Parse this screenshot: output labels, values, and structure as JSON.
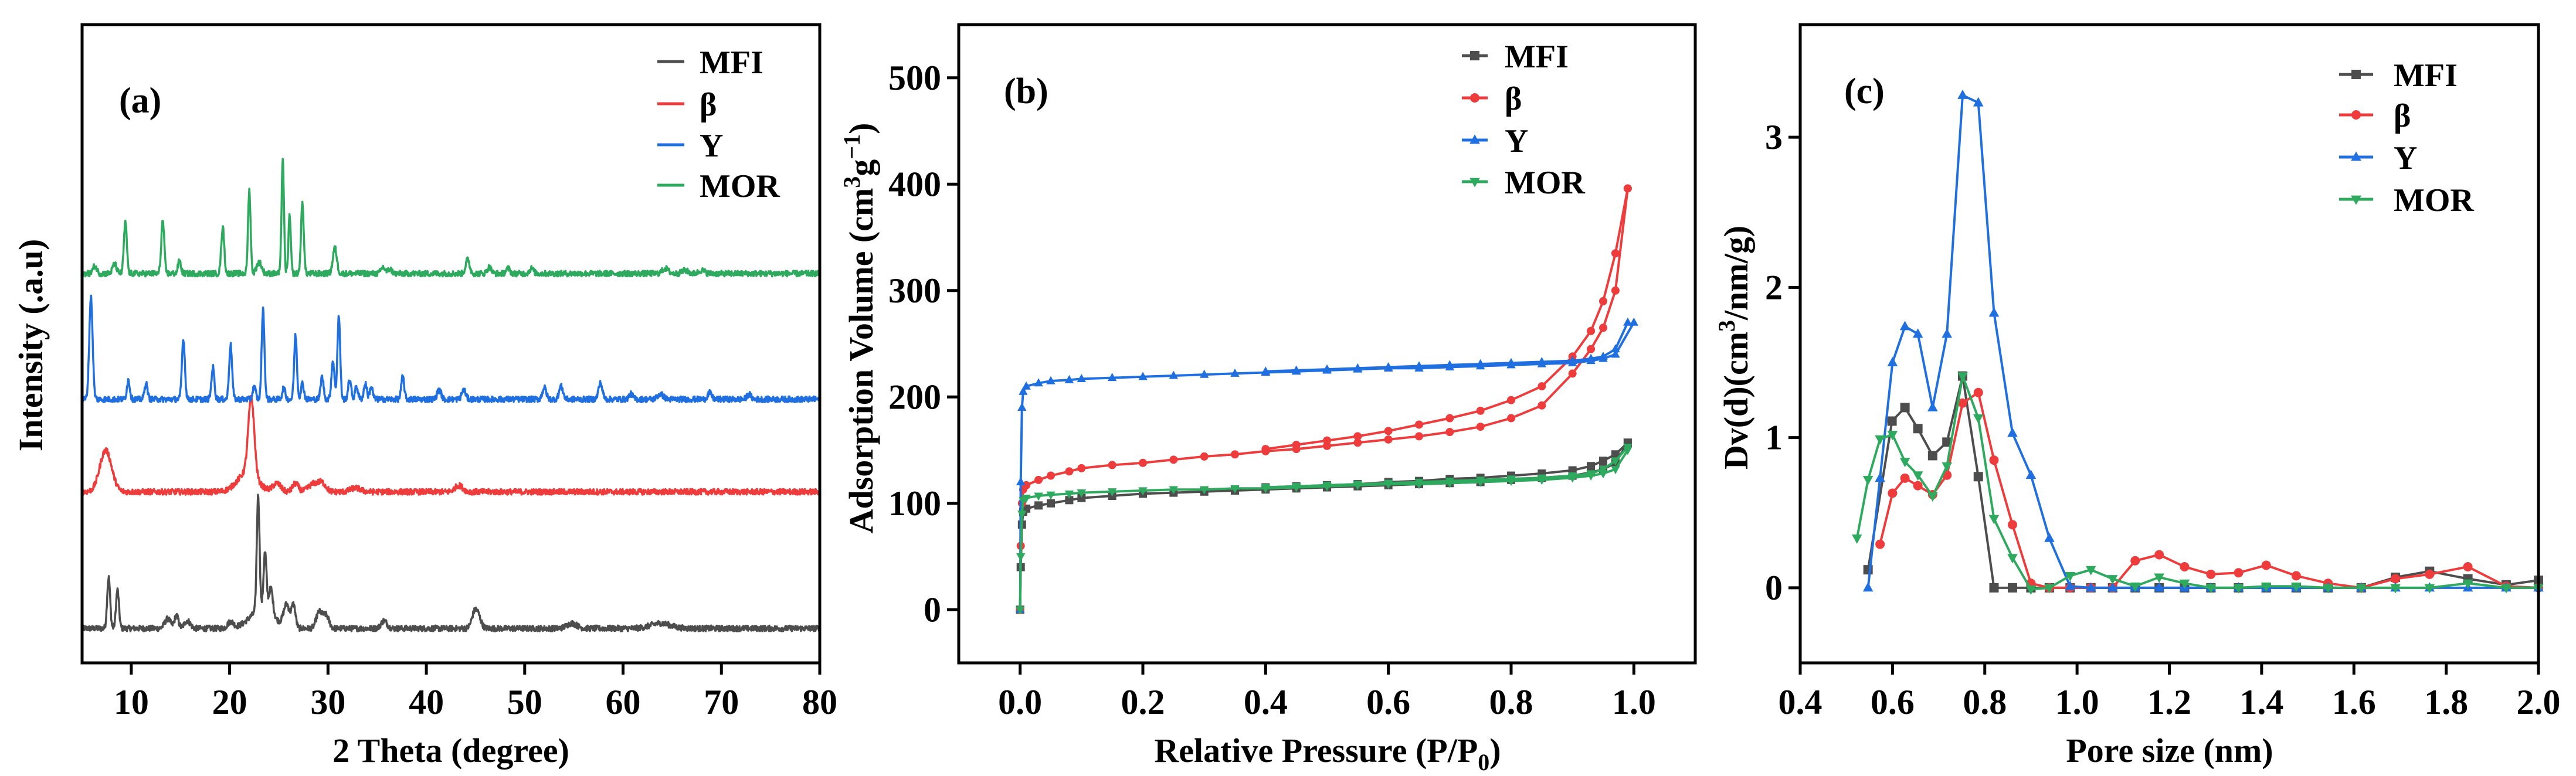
{
  "colors": {
    "MFI": "#4d4d4d",
    "beta": "#ee3b3b",
    "Y": "#1f6fe0",
    "MOR": "#2eaa5e"
  },
  "chart_data": [
    {
      "type": "line",
      "panel_label": "(a)",
      "title": "",
      "xlabel": "2 Theta (degree)",
      "ylabel": "Intensity (.a.u)",
      "xlim": [
        5,
        80
      ],
      "ylim": [
        0,
        100
      ],
      "xticks": [
        "10",
        "20",
        "30",
        "40",
        "50",
        "60",
        "70",
        "80"
      ],
      "xtick_values": [
        10,
        20,
        30,
        40,
        50,
        60,
        70,
        80
      ],
      "legend": {
        "placement": "top-right",
        "entries": [
          "MFI",
          "β",
          "Y",
          "MOR"
        ]
      },
      "series": [
        {
          "name": "MFI",
          "color_key": "MFI",
          "baseline": 5.4,
          "peaks": [
            [
              7.7,
              8,
              0.15
            ],
            [
              8.6,
              6,
              0.15
            ],
            [
              13.7,
              1.5,
              0.3
            ],
            [
              14.6,
              2,
              0.2
            ],
            [
              15.7,
              1.2,
              0.3
            ],
            [
              20.1,
              1,
              0.3
            ],
            [
              22.9,
              18,
              0.14
            ],
            [
              23.6,
              9,
              0.15
            ],
            [
              24.2,
              4,
              0.2
            ],
            [
              23.3,
              3,
              1.2
            ],
            [
              25.8,
              3.5,
              0.3
            ],
            [
              26.5,
              3.5,
              0.2
            ],
            [
              29.1,
              2.5,
              0.3
            ],
            [
              29.8,
              2,
              0.3
            ],
            [
              35.7,
              1.2,
              0.3
            ],
            [
              44.9,
              2.2,
              0.3
            ],
            [
              45.3,
              1.5,
              0.3
            ],
            [
              54.8,
              0.8,
              0.5
            ],
            [
              63.8,
              0.8,
              1
            ]
          ]
        },
        {
          "name": "β",
          "color_key": "beta",
          "baseline": 26.8,
          "peaks": [
            [
              7.4,
              6.5,
              0.6
            ],
            [
              22.2,
              12,
              0.3
            ],
            [
              21.8,
              3,
              1
            ],
            [
              24.8,
              1.3,
              0.4
            ],
            [
              26.7,
              1.3,
              0.3
            ],
            [
              28.5,
              1.2,
              0.5
            ],
            [
              29.4,
              1.3,
              0.4
            ],
            [
              43.3,
              1,
              0.4
            ],
            [
              32.8,
              0.6,
              0.5
            ]
          ]
        },
        {
          "name": "Y",
          "color_key": "Y",
          "baseline": 41.3,
          "peaks": [
            [
              5.9,
              16,
              0.17
            ],
            [
              9.7,
              3,
              0.15
            ],
            [
              11.5,
              2.5,
              0.15
            ],
            [
              15.3,
              9.5,
              0.15
            ],
            [
              18.3,
              5,
              0.15
            ],
            [
              20.1,
              8.5,
              0.15
            ],
            [
              22.5,
              2,
              0.15
            ],
            [
              23.4,
              14,
              0.14
            ],
            [
              25.5,
              1.8,
              0.15
            ],
            [
              26.7,
              10,
              0.14
            ],
            [
              27.4,
              2.5,
              0.15
            ],
            [
              29.4,
              3.5,
              0.15
            ],
            [
              30.5,
              6,
              0.15
            ],
            [
              31.1,
              13,
              0.14
            ],
            [
              32.2,
              3,
              0.15
            ],
            [
              32.9,
              2,
              0.15
            ],
            [
              33.8,
              2.5,
              0.15
            ],
            [
              34.4,
              2,
              0.15
            ],
            [
              37.6,
              3.5,
              0.15
            ],
            [
              41.3,
              1.5,
              0.2
            ],
            [
              43.8,
              1.5,
              0.2
            ],
            [
              52,
              1.8,
              0.2
            ],
            [
              53.7,
              2,
              0.2
            ],
            [
              57.7,
              2.5,
              0.2
            ],
            [
              60.8,
              0.8,
              0.2
            ],
            [
              63.8,
              0.8,
              0.3
            ],
            [
              68.8,
              1,
              0.2
            ],
            [
              72.8,
              0.8,
              0.2
            ]
          ]
        },
        {
          "name": "MOR",
          "color_key": "MOR",
          "baseline": 61,
          "peaks": [
            [
              6.3,
              1.2,
              0.2
            ],
            [
              8.3,
              1.5,
              0.2
            ],
            [
              9.4,
              8,
              0.15
            ],
            [
              13.2,
              8.3,
              0.15
            ],
            [
              14.9,
              2,
              0.15
            ],
            [
              19.3,
              7.3,
              0.15
            ],
            [
              22.0,
              13,
              0.13
            ],
            [
              23.0,
              1.8,
              0.25
            ],
            [
              25.4,
              18,
              0.12
            ],
            [
              26.1,
              9,
              0.12
            ],
            [
              27.4,
              11,
              0.14
            ],
            [
              30.7,
              4,
              0.2
            ],
            [
              35.6,
              1,
              0.2
            ],
            [
              36.3,
              0.7,
              0.2
            ],
            [
              44.2,
              2.2,
              0.2
            ],
            [
              46.4,
              1,
              0.2
            ],
            [
              48.3,
              0.8,
              0.2
            ],
            [
              50.7,
              0.8,
              0.2
            ],
            [
              64.3,
              0.8,
              0.3
            ],
            [
              66.3,
              0.5,
              0.3
            ],
            [
              68,
              0.5,
              0.3
            ]
          ]
        }
      ]
    },
    {
      "type": "line",
      "panel_label": "(b)",
      "title": "",
      "xlabel": "Relative Pressure (P/P",
      "xlabel_sub": "0",
      "xlabel_end": ")",
      "ylabel": "Adsorption Volume (cm",
      "ylabel_sup1": "3",
      "ylabel_mid": "g",
      "ylabel_sup2": "−1",
      "ylabel_end": ")",
      "xlim": [
        -0.1,
        1.1
      ],
      "ylim": [
        -50,
        550
      ],
      "xticks": [
        "0.0",
        "0.2",
        "0.4",
        "0.6",
        "0.8",
        "1.0"
      ],
      "xtick_values": [
        0,
        0.2,
        0.4,
        0.6,
        0.8,
        1.0
      ],
      "yticks": [
        "0",
        "100",
        "200",
        "300",
        "400",
        "500"
      ],
      "ytick_values": [
        0,
        100,
        200,
        300,
        400,
        500
      ],
      "legend": {
        "placement": "top-right",
        "entries": [
          "MFI",
          "β",
          "Y",
          "MOR"
        ]
      },
      "x_ads": [
        0,
        0.001,
        0.003,
        0.005,
        0.01,
        0.03,
        0.05,
        0.08,
        0.1,
        0.15,
        0.2,
        0.25,
        0.3,
        0.35,
        0.4,
        0.45,
        0.5,
        0.55,
        0.6,
        0.65,
        0.7,
        0.75,
        0.8,
        0.85,
        0.9,
        0.93,
        0.95,
        0.97,
        0.99
      ],
      "x_des": [
        0.99,
        0.97,
        0.95,
        0.93,
        0.9,
        0.85,
        0.8,
        0.75,
        0.7,
        0.65,
        0.6,
        0.55,
        0.5,
        0.45,
        0.4
      ],
      "series": [
        {
          "name": "MFI",
          "color_key": "MFI",
          "marker": "square",
          "adsorption": [
            0,
            40,
            80,
            92,
            95,
            98,
            100,
            103,
            105,
            107,
            109,
            110,
            111,
            112,
            113,
            114,
            115,
            116,
            117,
            118,
            119,
            120,
            122,
            124,
            126,
            129,
            132,
            138,
            157
          ],
          "desorption": [
            157,
            146,
            140,
            135,
            131,
            128,
            126,
            124,
            123,
            121,
            120,
            118,
            117,
            116,
            115
          ]
        },
        {
          "name": "β",
          "color_key": "beta",
          "marker": "circle",
          "adsorption": [
            0,
            60,
            100,
            113,
            117,
            122,
            126,
            130,
            133,
            136,
            138,
            141,
            144,
            146,
            149,
            151,
            154,
            157,
            160,
            163,
            167,
            172,
            180,
            192,
            222,
            245,
            265,
            300,
            396
          ],
          "desorption": [
            396,
            335,
            290,
            262,
            238,
            210,
            197,
            187,
            180,
            174,
            168,
            163,
            159,
            155,
            151
          ]
        },
        {
          "name": "Y",
          "color_key": "Y",
          "marker": "triangle-up",
          "adsorption": [
            0,
            120,
            190,
            205,
            210,
            213,
            215,
            216,
            217,
            218,
            219,
            220,
            221,
            222,
            223,
            224,
            225,
            226,
            227,
            227,
            228,
            229,
            230,
            231,
            232,
            234,
            236,
            240,
            270
          ],
          "desorption": [
            270,
            245,
            238,
            236,
            234,
            233,
            232,
            231,
            230,
            229,
            228,
            227,
            226,
            225,
            224
          ]
        },
        {
          "name": "MOR",
          "color_key": "MOR",
          "marker": "triangle-down",
          "adsorption": [
            0,
            50,
            90,
            103,
            105,
            107,
            108,
            109,
            110,
            111,
            112,
            113,
            113,
            114,
            114,
            115,
            116,
            117,
            118,
            118,
            119,
            120,
            121,
            122,
            124,
            126,
            128,
            132,
            150
          ],
          "desorption": [
            153,
            140,
            132,
            128,
            126,
            124,
            123,
            122,
            121,
            120,
            119,
            118,
            117,
            116,
            115
          ]
        }
      ]
    },
    {
      "type": "line",
      "panel_label": "(c)",
      "title": "",
      "xlabel": "Pore size (nm)",
      "ylabel": "Dv(d)(cm",
      "ylabel_sup1": "3",
      "ylabel_end": "/nm/g)",
      "xlim": [
        0.4,
        2.0
      ],
      "ylim": [
        -0.5,
        3.75
      ],
      "xticks": [
        "0.4",
        "0.6",
        "0.8",
        "1.0",
        "1.2",
        "1.4",
        "1.6",
        "1.8",
        "2.0"
      ],
      "xtick_values": [
        0.4,
        0.6,
        0.8,
        1.0,
        1.2,
        1.4,
        1.6,
        1.8,
        2.0
      ],
      "yticks": [
        "0",
        "1",
        "2",
        "3"
      ],
      "ytick_values": [
        0,
        1,
        2,
        3
      ],
      "legend": {
        "placement": "top-right",
        "entries": [
          "MFI",
          "β",
          "Y",
          "MOR"
        ]
      },
      "series": [
        {
          "name": "MFI",
          "color_key": "MFI",
          "marker": "square",
          "x": [
            0.547,
            0.599,
            0.627,
            0.655,
            0.687,
            0.718,
            0.752,
            0.786,
            0.82,
            0.86,
            0.9,
            0.94,
            0.985,
            1.03,
            1.077,
            1.126,
            1.178,
            1.233,
            1.29,
            1.35,
            1.41,
            1.475,
            1.544,
            1.616,
            1.69,
            1.764,
            1.847,
            1.93,
            2.0
          ],
          "y": [
            0.12,
            1.11,
            1.2,
            1.06,
            0.88,
            0.97,
            1.41,
            0.74,
            0,
            0,
            0,
            0,
            0,
            0,
            0,
            0,
            0,
            0,
            0,
            0,
            0,
            0,
            0,
            0,
            0.07,
            0.11,
            0.06,
            0.02,
            0.05
          ]
        },
        {
          "name": "β",
          "color_key": "beta",
          "marker": "circle",
          "x": [
            0.573,
            0.6,
            0.627,
            0.655,
            0.687,
            0.718,
            0.752,
            0.786,
            0.82,
            0.86,
            0.9,
            0.94,
            0.985,
            1.03,
            1.077,
            1.126,
            1.178,
            1.233,
            1.29,
            1.35,
            1.41,
            1.475,
            1.544,
            1.616,
            1.69,
            1.764,
            1.847,
            1.93,
            2.0
          ],
          "y": [
            0.29,
            0.63,
            0.73,
            0.68,
            0.62,
            0.75,
            1.23,
            1.3,
            0.85,
            0.42,
            0.03,
            0,
            0,
            0,
            0,
            0.18,
            0.22,
            0.14,
            0.09,
            0.1,
            0.15,
            0.08,
            0.03,
            0,
            0.06,
            0.09,
            0.14,
            0.01,
            0
          ]
        },
        {
          "name": "Y",
          "color_key": "Y",
          "marker": "triangle-up",
          "x": [
            0.547,
            0.573,
            0.6,
            0.627,
            0.655,
            0.687,
            0.718,
            0.752,
            0.786,
            0.82,
            0.86,
            0.9,
            0.94,
            0.985,
            1.03,
            1.077,
            1.126,
            1.178,
            1.233,
            1.29,
            1.35,
            1.41,
            1.475,
            1.544,
            1.616,
            1.69,
            1.764,
            1.847,
            1.93,
            2.0
          ],
          "y": [
            0,
            0.73,
            1.5,
            1.74,
            1.69,
            1.2,
            1.69,
            3.28,
            3.23,
            1.83,
            1.03,
            0.75,
            0.33,
            0.01,
            0,
            0,
            0,
            0,
            0,
            0,
            0,
            0,
            0,
            0,
            0,
            0,
            0,
            0,
            0,
            0
          ]
        },
        {
          "name": "MOR",
          "color_key": "MOR",
          "marker": "triangle-down",
          "x": [
            0.523,
            0.547,
            0.573,
            0.6,
            0.627,
            0.655,
            0.687,
            0.718,
            0.752,
            0.786,
            0.82,
            0.86,
            0.9,
            0.94,
            0.985,
            1.03,
            1.077,
            1.126,
            1.178,
            1.233,
            1.29,
            1.35,
            1.41,
            1.475,
            1.544,
            1.616,
            1.69,
            1.764,
            1.847,
            1.93,
            2.0
          ],
          "y": [
            0.33,
            0.72,
            0.99,
            1.02,
            0.84,
            0.75,
            0.61,
            0.81,
            1.41,
            1.13,
            0.46,
            0.2,
            -0.01,
            0,
            0.08,
            0.12,
            0.06,
            0.01,
            0.07,
            0.03,
            0,
            0,
            0.01,
            0.01,
            0,
            0,
            0,
            0,
            0.03,
            0,
            0
          ]
        }
      ]
    }
  ]
}
